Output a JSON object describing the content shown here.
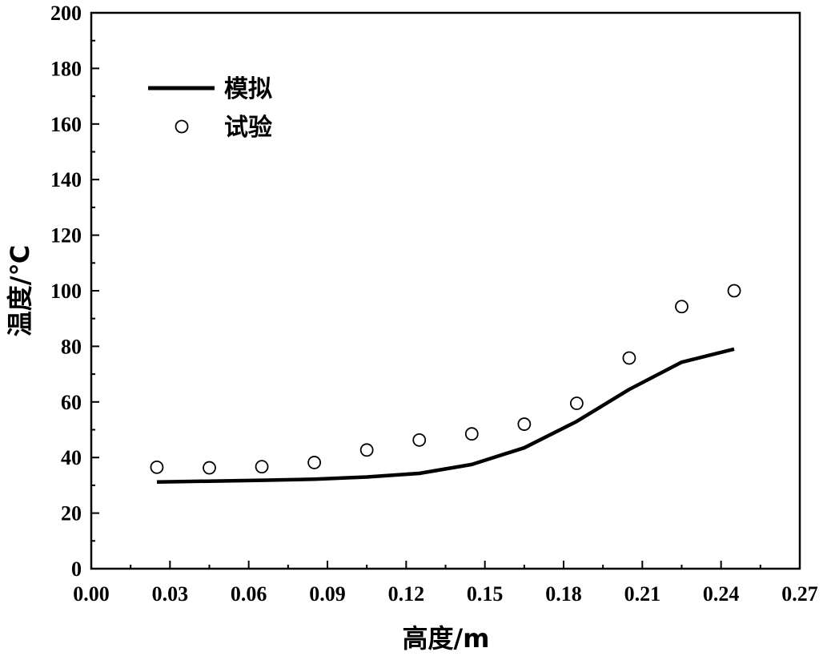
{
  "chart_data": {
    "type": "line",
    "xlabel": "高度/m",
    "ylabel": "温度/℃",
    "xlim": [
      0.0,
      0.27
    ],
    "ylim": [
      0,
      200
    ],
    "xticks": [
      "0.00",
      "0.03",
      "0.06",
      "0.09",
      "0.12",
      "0.15",
      "0.18",
      "0.21",
      "0.24",
      "0.27"
    ],
    "yticks": [
      "0",
      "20",
      "40",
      "60",
      "80",
      "100",
      "120",
      "140",
      "160",
      "180",
      "200"
    ],
    "legend_position": "top-left",
    "grid": false,
    "series": [
      {
        "name": "模拟",
        "style": "line",
        "x": [
          0.025,
          0.045,
          0.065,
          0.085,
          0.105,
          0.125,
          0.145,
          0.165,
          0.185,
          0.205,
          0.225,
          0.245
        ],
        "y": [
          31.2,
          31.5,
          31.8,
          32.2,
          33.0,
          34.3,
          37.5,
          43.5,
          53.0,
          64.5,
          74.3,
          79.0
        ]
      },
      {
        "name": "试验",
        "style": "marker",
        "x": [
          0.025,
          0.045,
          0.065,
          0.085,
          0.105,
          0.125,
          0.145,
          0.165,
          0.185,
          0.205,
          0.225,
          0.245
        ],
        "y": [
          36.5,
          36.3,
          36.7,
          38.2,
          42.7,
          46.3,
          48.5,
          52.0,
          59.5,
          75.8,
          94.3,
          100.0
        ]
      }
    ]
  }
}
